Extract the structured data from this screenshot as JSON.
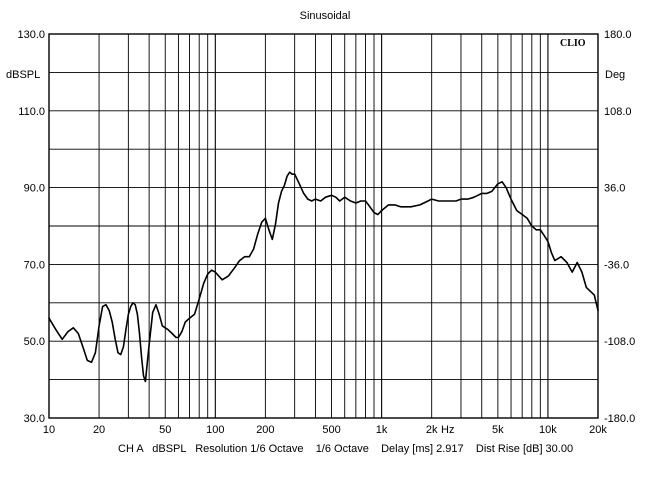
{
  "chart_data": {
    "type": "line",
    "title": "Sinusoidal",
    "brand": "CLIO",
    "xscale": "log",
    "xlim": [
      10,
      20000
    ],
    "ylim": [
      30,
      130
    ],
    "y2lim": [
      -180,
      180
    ],
    "ylabel": "dBSPL",
    "y2label": "Deg",
    "xlabel": "Hz",
    "grid": true,
    "x_ticks": [
      {
        "value": 10,
        "label": "10"
      },
      {
        "value": 20,
        "label": "20"
      },
      {
        "value": 50,
        "label": "50"
      },
      {
        "value": 100,
        "label": "100"
      },
      {
        "value": 200,
        "label": "200"
      },
      {
        "value": 500,
        "label": "500"
      },
      {
        "value": 1000,
        "label": "1k"
      },
      {
        "value": 2000,
        "label": "2k"
      },
      {
        "value": 5000,
        "label": "5k"
      },
      {
        "value": 10000,
        "label": "10k"
      },
      {
        "value": 20000,
        "label": "20k"
      }
    ],
    "y_ticks": [
      {
        "value": 130,
        "label": "130.0"
      },
      {
        "value": 110,
        "label": "110.0"
      },
      {
        "value": 90,
        "label": "90.0"
      },
      {
        "value": 70,
        "label": "70.0"
      },
      {
        "value": 50,
        "label": "50.0"
      },
      {
        "value": 30,
        "label": "30.0"
      }
    ],
    "y2_ticks": [
      {
        "value": 180,
        "label": "180.0"
      },
      {
        "value": 108,
        "label": "108.0"
      },
      {
        "value": 36,
        "label": "36.0"
      },
      {
        "value": -36,
        "label": "-36.0"
      },
      {
        "value": -108,
        "label": "-108.0"
      },
      {
        "value": -180,
        "label": "-180.0"
      }
    ],
    "footer": "CH A   dBSPL   Resolution 1/6 Octave    1/6 Octave    Delay [ms] 2.917    Dist Rise [dB] 30.00",
    "series": [
      {
        "color": "#000000",
        "x": [
          10,
          11,
          12,
          13,
          14,
          15,
          16,
          17,
          18,
          19,
          20,
          21,
          22,
          23,
          24,
          25,
          26,
          27,
          28,
          29,
          30,
          31,
          32,
          33,
          34,
          35,
          36,
          37,
          38,
          40,
          42,
          44,
          46,
          48,
          50,
          52,
          55,
          58,
          60,
          63,
          66,
          70,
          75,
          80,
          85,
          90,
          95,
          100,
          110,
          120,
          130,
          140,
          150,
          160,
          170,
          180,
          190,
          200,
          210,
          220,
          230,
          240,
          250,
          260,
          270,
          280,
          290,
          300,
          320,
          340,
          360,
          380,
          400,
          430,
          460,
          500,
          530,
          560,
          600,
          650,
          700,
          750,
          800,
          850,
          900,
          950,
          1000,
          1100,
          1200,
          1300,
          1400,
          1500,
          1700,
          1900,
          2000,
          2200,
          2500,
          2800,
          3000,
          3300,
          3600,
          4000,
          4300,
          4600,
          5000,
          5300,
          5600,
          6000,
          6500,
          7000,
          7500,
          8000,
          8500,
          9000,
          9500,
          10000,
          10500,
          11000,
          12000,
          13000,
          14000,
          15000,
          16000,
          17000,
          18000,
          19000,
          20000
        ],
        "values": [
          56,
          53,
          50.5,
          52.5,
          53.5,
          52,
          48.5,
          45,
          44.5,
          47,
          54,
          59,
          59.5,
          58,
          55,
          50.5,
          47,
          46.5,
          48.5,
          53,
          57,
          59,
          60,
          59.5,
          57,
          52,
          46,
          41,
          39.5,
          49,
          57.5,
          59.5,
          57,
          54,
          53.5,
          53,
          52,
          51,
          51,
          52.5,
          55,
          56,
          57,
          61,
          65,
          67.5,
          68.5,
          68,
          66,
          67,
          69,
          71,
          72,
          72,
          74,
          78,
          81,
          82,
          79,
          76.5,
          80.5,
          86,
          89,
          90.5,
          93,
          94,
          93.5,
          93.5,
          91,
          88.5,
          87,
          86.5,
          87,
          86.5,
          87.5,
          88,
          87.5,
          86.5,
          87.5,
          86.5,
          86,
          86.5,
          86.5,
          85,
          83.5,
          83,
          84,
          85.5,
          85.5,
          85,
          85,
          85,
          85.5,
          86.5,
          87,
          86.5,
          86.5,
          86.5,
          87,
          87,
          87.5,
          88.5,
          88.5,
          89,
          91,
          91.5,
          90,
          87,
          84,
          83,
          82,
          80,
          79,
          79,
          77.5,
          76,
          73,
          71,
          72,
          70.5,
          68,
          70.5,
          68,
          64,
          63,
          62,
          58
        ]
      }
    ]
  }
}
